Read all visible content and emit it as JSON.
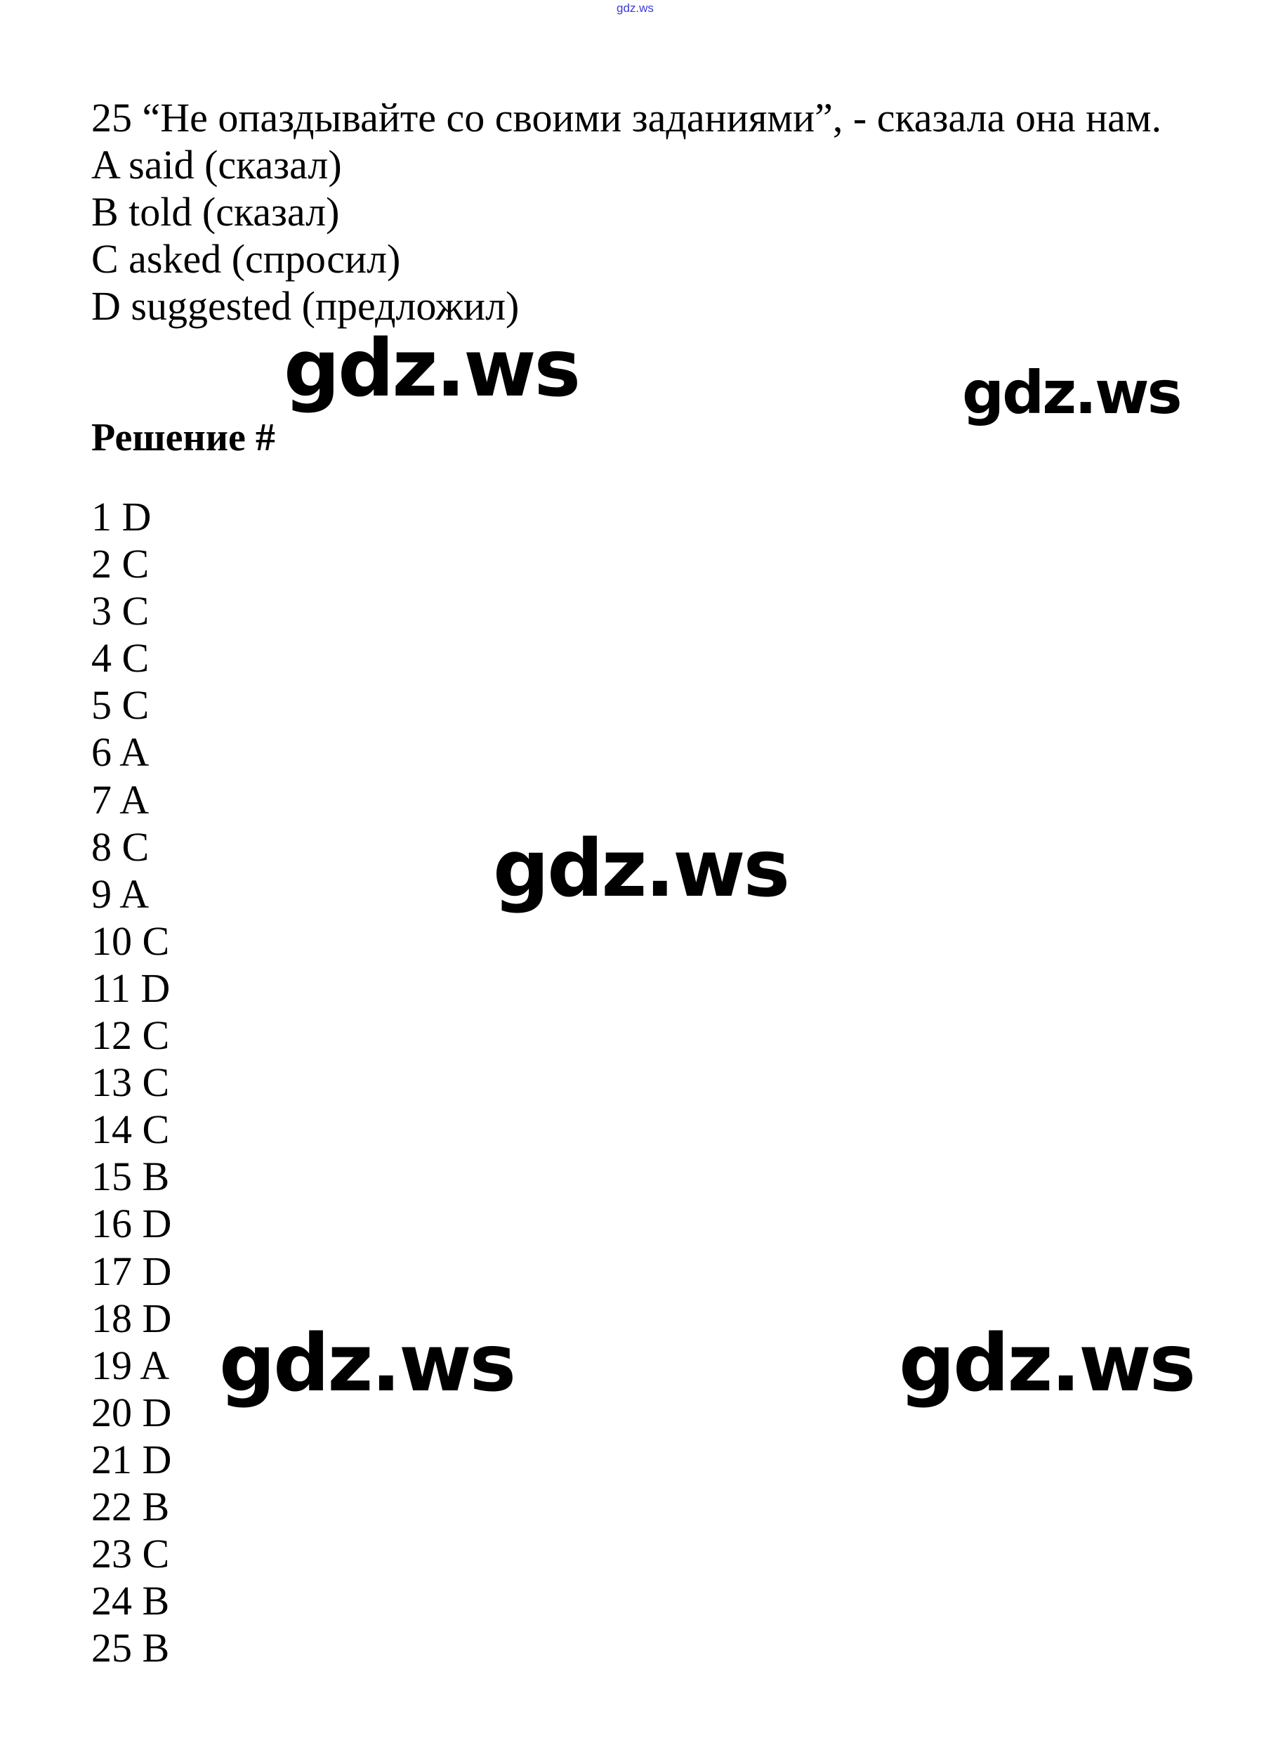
{
  "header": {
    "site_mark": "gdz.ws"
  },
  "question": {
    "text": "25 “Не опаздывайте со своими заданиями”, - сказала она нам.",
    "options": [
      "A said (сказал)",
      "B told (сказал)",
      "C asked (спросил)",
      "D suggested (предложил)"
    ]
  },
  "solution": {
    "heading": "Решение #",
    "answers": [
      "1 D",
      "2 C",
      "3 C",
      "4 C",
      "5 C",
      "6 A",
      "7 A",
      "8 C",
      "9 A",
      "10 C",
      "11 D",
      "12 C",
      "13 C",
      "14 C",
      "15 B",
      "16 D",
      "17 D",
      "18 D",
      "19 A",
      "20 D",
      "21 D",
      "22 B",
      "23 C",
      "24 B",
      "25 B"
    ]
  },
  "watermarks": [
    "gdz.ws",
    "gdz.ws",
    "gdz.ws",
    "gdz.ws",
    "gdz.ws"
  ]
}
